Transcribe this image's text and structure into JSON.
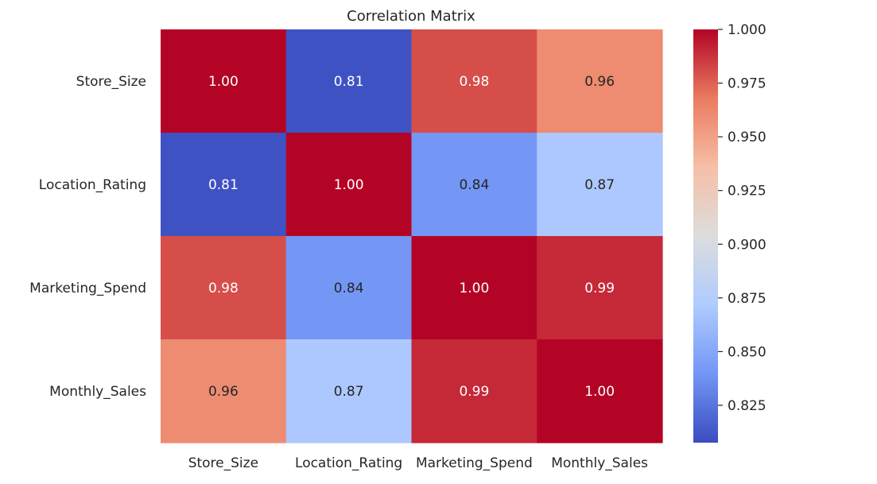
{
  "chart_data": {
    "type": "heatmap",
    "title": "Correlation Matrix",
    "xlabel": "",
    "ylabel": "",
    "x_categories": [
      "Store_Size",
      "Location_Rating",
      "Marketing_Spend",
      "Monthly_Sales"
    ],
    "y_categories": [
      "Store_Size",
      "Location_Rating",
      "Marketing_Spend",
      "Monthly_Sales"
    ],
    "values": [
      [
        1.0,
        0.81,
        0.98,
        0.96
      ],
      [
        0.81,
        1.0,
        0.84,
        0.87
      ],
      [
        0.98,
        0.84,
        1.0,
        0.99
      ],
      [
        0.96,
        0.87,
        0.99,
        1.0
      ]
    ],
    "annotation_format": "0.00",
    "colormap": "coolwarm",
    "colormap_stops": [
      "#3b4cc0",
      "#7396f5",
      "#b0cbff",
      "#dcdddd",
      "#f6bfa6",
      "#ea7b60",
      "#b40426"
    ],
    "vmin": 0.8076,
    "vmax": 1.0,
    "colorbar": {
      "ticks": [
        0.825,
        0.85,
        0.875,
        0.9,
        0.925,
        0.95,
        0.975,
        1.0
      ],
      "tick_labels": [
        "0.825",
        "0.850",
        "0.875",
        "0.900",
        "0.925",
        "0.950",
        "0.975",
        "1.000"
      ]
    },
    "text_color_light": "#ffffff",
    "text_color_dark": "#262626",
    "label_color": "#262626"
  }
}
